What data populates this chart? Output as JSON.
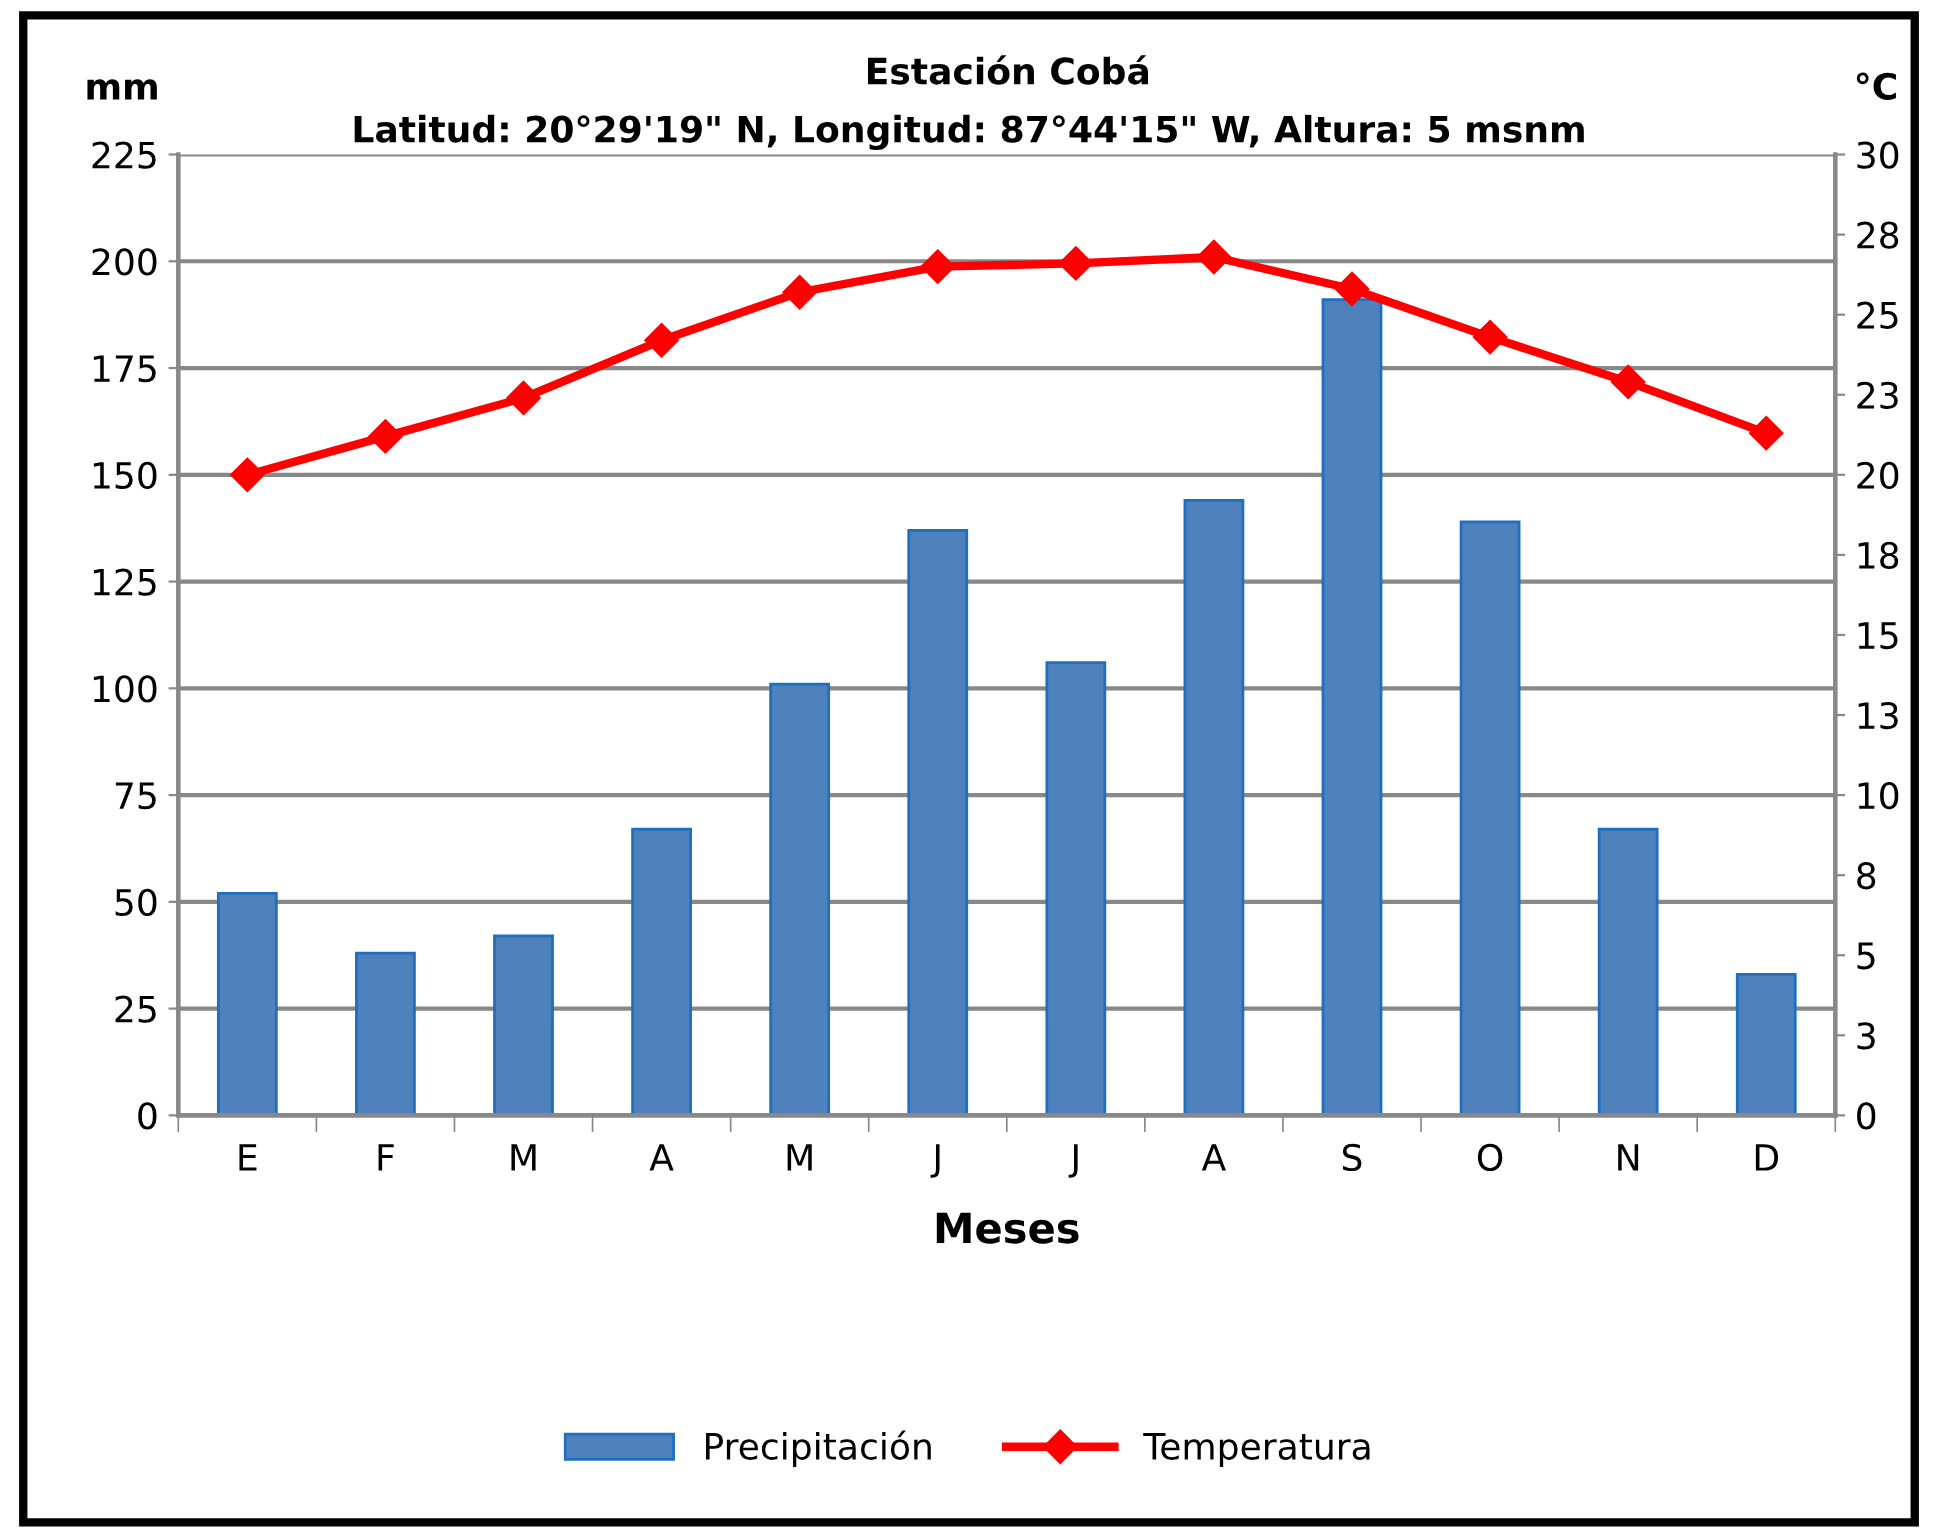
{
  "chart_data": {
    "type": "bar",
    "title": "Estación Cobá",
    "subtitle": "Latitud: 20°29'19\" N, Longitud: 87°44'15\" W, Altura: 5 msnm",
    "xlabel": "Meses",
    "ylabel": "mm",
    "y2label": "°C",
    "categories": [
      "E",
      "F",
      "M",
      "A",
      "M",
      "J",
      "J",
      "A",
      "S",
      "O",
      "N",
      "D"
    ],
    "series": [
      {
        "name": "Precipitación",
        "color": "#4f81bd",
        "values": [
          52,
          38,
          42,
          67,
          101,
          137,
          106,
          144,
          191,
          139,
          67,
          33
        ]
      },
      {
        "name": "Temperatura",
        "type": "line",
        "axis": "y2",
        "color": "#ff0000",
        "marker": "diamond",
        "values": [
          20.0,
          21.2,
          22.4,
          24.2,
          25.7,
          26.5,
          26.6,
          26.8,
          25.8,
          24.3,
          22.9,
          21.3
        ]
      }
    ],
    "ylim": [
      0,
      225
    ],
    "yticks": [
      0,
      25,
      50,
      75,
      100,
      125,
      150,
      175,
      200,
      225
    ],
    "y2lim": [
      0,
      30
    ],
    "y2ticks": [
      0,
      {
        "value": 2.5,
        "label": "3"
      },
      5,
      {
        "value": 7.5,
        "label": "8"
      },
      10,
      {
        "value": 12.5,
        "label": "13"
      },
      15,
      {
        "value": 17.5,
        "label": "18"
      },
      20,
      {
        "value": 22.5,
        "label": "23"
      },
      25,
      {
        "value": 27.5,
        "label": "28"
      },
      30
    ],
    "grid": "y",
    "legend": "bottom"
  }
}
